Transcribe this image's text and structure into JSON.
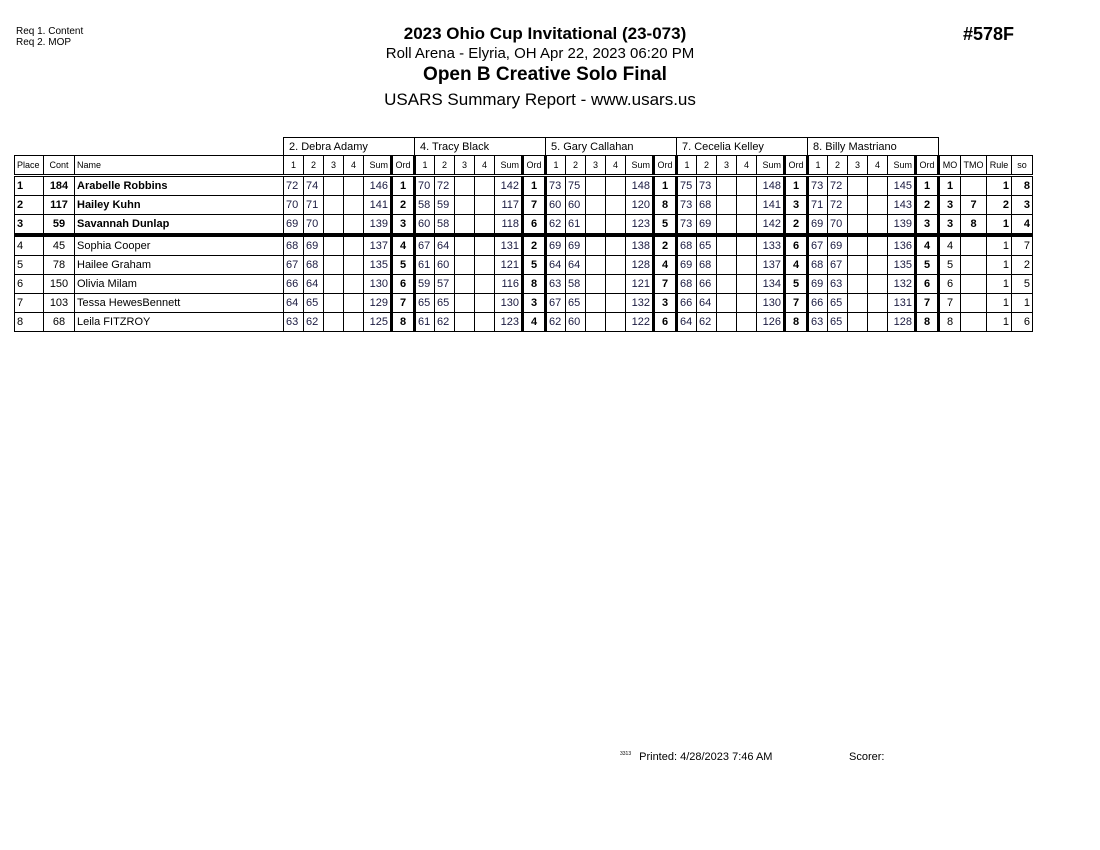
{
  "requirements": [
    "Req  1.  Content",
    "Req  2.  MOP"
  ],
  "title": "2023 Ohio Cup Invitational (23-073)",
  "venue": "Roll Arena - Elyria, OH  Apr 22, 2023  06:20 PM",
  "event": "Open B Creative Solo Final",
  "report": "USARS Summary Report - www.usars.us",
  "event_code": "#578F",
  "judges": [
    "2.  Debra Adamy",
    "4.  Tracy Black",
    "5.  Gary Callahan",
    "7.  Cecelia Kelley",
    "8.  Billy Mastriano"
  ],
  "columns": {
    "place": "Place",
    "cont": "Cont",
    "name": "Name",
    "judge_cols": [
      "1",
      "2",
      "3",
      "4",
      "Sum",
      "Ord"
    ],
    "mo": "MO",
    "tmo": "TMO",
    "rule": "Rule",
    "so": "so"
  },
  "rows": [
    {
      "place": "1",
      "cont": "184",
      "name": "Arabelle Robbins",
      "scores": [
        [
          "72",
          "74",
          "146",
          "1"
        ],
        [
          "70",
          "72",
          "142",
          "1"
        ],
        [
          "73",
          "75",
          "148",
          "1"
        ],
        [
          "75",
          "73",
          "148",
          "1"
        ],
        [
          "73",
          "72",
          "145",
          "1"
        ]
      ],
      "mo": "1",
      "tmo": "",
      "rule": "1",
      "so": "8"
    },
    {
      "place": "2",
      "cont": "117",
      "name": "Hailey Kuhn",
      "scores": [
        [
          "70",
          "71",
          "141",
          "2"
        ],
        [
          "58",
          "59",
          "117",
          "7"
        ],
        [
          "60",
          "60",
          "120",
          "8"
        ],
        [
          "73",
          "68",
          "141",
          "3"
        ],
        [
          "71",
          "72",
          "143",
          "2"
        ]
      ],
      "mo": "3",
      "tmo": "7",
      "rule": "2",
      "so": "3"
    },
    {
      "place": "3",
      "cont": "59",
      "name": "Savannah Dunlap",
      "scores": [
        [
          "69",
          "70",
          "139",
          "3"
        ],
        [
          "60",
          "58",
          "118",
          "6"
        ],
        [
          "62",
          "61",
          "123",
          "5"
        ],
        [
          "73",
          "69",
          "142",
          "2"
        ],
        [
          "69",
          "70",
          "139",
          "3"
        ]
      ],
      "mo": "3",
      "tmo": "8",
      "rule": "1",
      "so": "4"
    },
    {
      "place": "4",
      "cont": "45",
      "name": "Sophia Cooper",
      "scores": [
        [
          "68",
          "69",
          "137",
          "4"
        ],
        [
          "67",
          "64",
          "131",
          "2"
        ],
        [
          "69",
          "69",
          "138",
          "2"
        ],
        [
          "68",
          "65",
          "133",
          "6"
        ],
        [
          "67",
          "69",
          "136",
          "4"
        ]
      ],
      "mo": "4",
      "tmo": "",
      "rule": "1",
      "so": "7"
    },
    {
      "place": "5",
      "cont": "78",
      "name": "Hailee Graham",
      "scores": [
        [
          "67",
          "68",
          "135",
          "5"
        ],
        [
          "61",
          "60",
          "121",
          "5"
        ],
        [
          "64",
          "64",
          "128",
          "4"
        ],
        [
          "69",
          "68",
          "137",
          "4"
        ],
        [
          "68",
          "67",
          "135",
          "5"
        ]
      ],
      "mo": "5",
      "tmo": "",
      "rule": "1",
      "so": "2"
    },
    {
      "place": "6",
      "cont": "150",
      "name": "Olivia Milam",
      "scores": [
        [
          "66",
          "64",
          "130",
          "6"
        ],
        [
          "59",
          "57",
          "116",
          "8"
        ],
        [
          "63",
          "58",
          "121",
          "7"
        ],
        [
          "68",
          "66",
          "134",
          "5"
        ],
        [
          "69",
          "63",
          "132",
          "6"
        ]
      ],
      "mo": "6",
      "tmo": "",
      "rule": "1",
      "so": "5"
    },
    {
      "place": "7",
      "cont": "103",
      "name": "Tessa HewesBennett",
      "scores": [
        [
          "64",
          "65",
          "129",
          "7"
        ],
        [
          "65",
          "65",
          "130",
          "3"
        ],
        [
          "67",
          "65",
          "132",
          "3"
        ],
        [
          "66",
          "64",
          "130",
          "7"
        ],
        [
          "66",
          "65",
          "131",
          "7"
        ]
      ],
      "mo": "7",
      "tmo": "",
      "rule": "1",
      "so": "1"
    },
    {
      "place": "8",
      "cont": "68",
      "name": "Leila FITZROY",
      "scores": [
        [
          "63",
          "62",
          "125",
          "8"
        ],
        [
          "61",
          "62",
          "123",
          "4"
        ],
        [
          "62",
          "60",
          "122",
          "6"
        ],
        [
          "64",
          "62",
          "126",
          "8"
        ],
        [
          "63",
          "65",
          "128",
          "8"
        ]
      ],
      "mo": "8",
      "tmo": "",
      "rule": "1",
      "so": "6"
    }
  ],
  "footer": {
    "page_code": "3313",
    "printed": "Printed:  4/28/2023  7:46 AM",
    "scorer": "Scorer:"
  }
}
